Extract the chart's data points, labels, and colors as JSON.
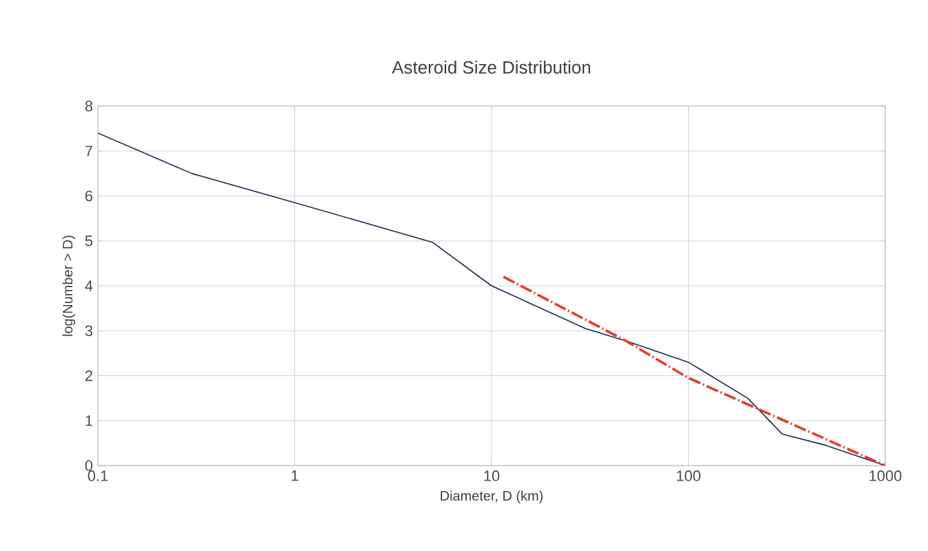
{
  "chart_data": {
    "type": "line",
    "title": "Asteroid Size Distribution",
    "xlabel": "Diameter, D (km)",
    "ylabel": "log(Number > D)",
    "log": "x",
    "grid": true,
    "xlim": [
      0.1,
      1000
    ],
    "ylim": [
      0,
      8
    ],
    "xticks": [
      0.1,
      1,
      10,
      100,
      1000
    ],
    "yticks": [
      0,
      1,
      2,
      3,
      4,
      5,
      6,
      7,
      8
    ],
    "series": [
      {
        "color": "#1a2a4a",
        "line_style": "solid",
        "x": [
          0.1,
          0.3,
          1,
          3,
          5,
          10,
          30,
          50,
          100,
          200,
          300,
          500,
          1000
        ],
        "values": [
          7.4,
          6.5,
          5.85,
          5.25,
          4.97,
          4.0,
          3.05,
          2.75,
          2.3,
          1.5,
          0.7,
          0.45,
          0
        ]
      },
      {
        "color": "#e8392a",
        "line_style": "dashed",
        "x": [
          11.5,
          47,
          100,
          1000
        ],
        "values": [
          4.2,
          2.8,
          1.95,
          0
        ]
      }
    ]
  }
}
